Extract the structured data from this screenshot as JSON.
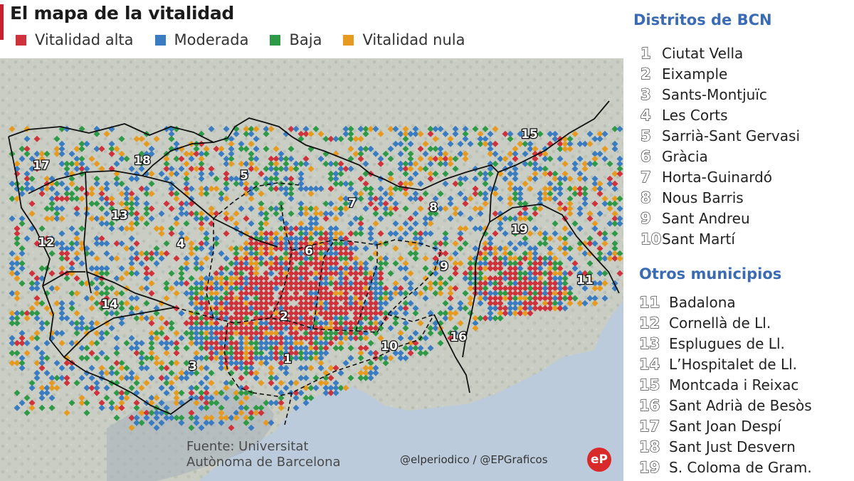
{
  "title": "El mapa de la vitalidad",
  "legend": [
    {
      "label": "Vitalidad alta",
      "color": "#d0323c"
    },
    {
      "label": "Moderada",
      "color": "#3a7cc1"
    },
    {
      "label": "Baja",
      "color": "#2e9a47"
    },
    {
      "label": "Vitalidad nula",
      "color": "#e69a1f"
    }
  ],
  "map": {
    "numbers": [
      "1",
      "2",
      "3",
      "4",
      "5",
      "6",
      "7",
      "8",
      "9",
      "10",
      "11",
      "12",
      "13",
      "14",
      "15",
      "16",
      "17",
      "18",
      "19"
    ]
  },
  "districts": {
    "heading": "Distritos de BCN",
    "items": [
      {
        "num": "1",
        "name": "Ciutat Vella"
      },
      {
        "num": "2",
        "name": "Eixample"
      },
      {
        "num": "3",
        "name": "Sants-Montjuïc"
      },
      {
        "num": "4",
        "name": "Les Corts"
      },
      {
        "num": "5",
        "name": "Sarrià-Sant Gervasi"
      },
      {
        "num": "6",
        "name": "Gràcia"
      },
      {
        "num": "7",
        "name": "Horta-Guinardó"
      },
      {
        "num": "8",
        "name": "Nous Barris"
      },
      {
        "num": "9",
        "name": "Sant Andreu"
      },
      {
        "num": "10",
        "name": "Sant Martí"
      }
    ]
  },
  "municipalities": {
    "heading": "Otros municipios",
    "items": [
      {
        "num": "11",
        "name": "Badalona"
      },
      {
        "num": "12",
        "name": "Cornellà de Ll."
      },
      {
        "num": "13",
        "name": "Esplugues de Ll."
      },
      {
        "num": "14",
        "name": "L’Hospitalet de Ll."
      },
      {
        "num": "15",
        "name": "Montcada i Reixac"
      },
      {
        "num": "16",
        "name": "Sant Adrià de Besòs"
      },
      {
        "num": "17",
        "name": "Sant Joan Despí"
      },
      {
        "num": "18",
        "name": "Sant Just Desvern"
      },
      {
        "num": "19",
        "name": "S. Coloma de Gram."
      }
    ]
  },
  "source": {
    "line1": "Fuente: Universitat",
    "line2": "Autònoma de Barcelona"
  },
  "credit": "@elperiodico / @EPGraficos",
  "logo": "eP"
}
